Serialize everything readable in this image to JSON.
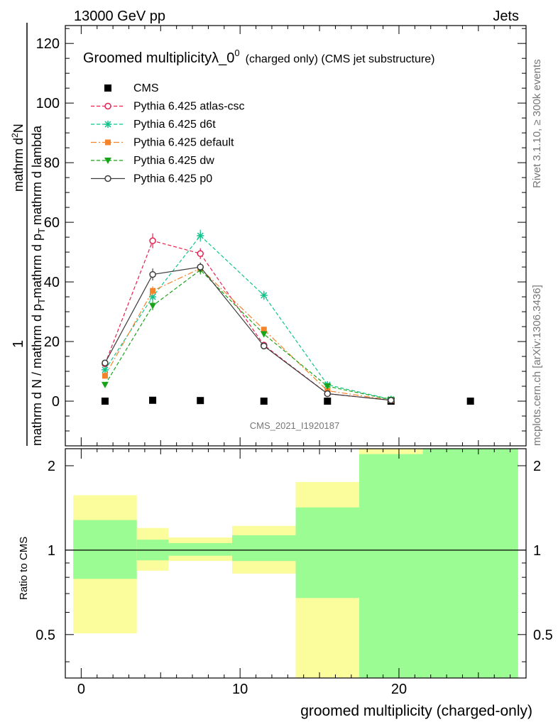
{
  "header": {
    "left": "13000 GeV pp",
    "right": "Jets"
  },
  "legend_title": {
    "main": "Groomed multiplicityλ_0",
    "sup": "0",
    "small": "(charged only) (CMS jet substructure)"
  },
  "side_labels": {
    "rivet": "Rivet 3.1.10, ≥ 300k events",
    "mcplots": "mcplots.cern.ch [arXiv:1306.3436]"
  },
  "watermark": "CMS_2021_I1920187",
  "colors": {
    "cms": "#000000",
    "atlas_csc": "#e8204f",
    "d6t": "#11c48b",
    "default": "#f5832a",
    "dw": "#19a319",
    "p0": "#3c3c3c",
    "band_inner": "#9cfc94",
    "band_outer": "#fbfc9c"
  },
  "chart_data": [
    {
      "type": "scatter",
      "ylabel_numerator": "1",
      "ylabel": "mathrm d N / mathrm d p_T mathrm d p_T mathrm d lambda",
      "ylabel_top": "mathrm d^2N",
      "ylabel_parts": {
        "num": "1",
        "den": "mathrm d N / mathrm d p",
        "den_sub": "T",
        "right": "mathrm d^2N",
        "right_den": "mathrm d p",
        "right_den_sub": "T",
        "right_tail": "mathrm d p",
        "right_tail2": "mathrm d lambda",
        "full_left": "mathrm d N / mathrm d p",
        "full_mid": "mathrm d p",
        "full_mid2": "mathrm d lambda",
        "frac_top": "mathrm d",
        "frac_top_sup": "2",
        "frac_top_tail": "N"
      },
      "xlim": [
        -1,
        28
      ],
      "ylim": [
        -15,
        126
      ],
      "yticks": [
        0,
        20,
        40,
        60,
        80,
        100,
        120
      ],
      "legend_position": "top-left",
      "series": [
        {
          "name": "CMS",
          "marker": "square",
          "color_key": "cms",
          "x": [
            1.5,
            4.5,
            7.5,
            11.5,
            15.5,
            19.5,
            24.5
          ],
          "y": [
            0,
            0.3,
            0.2,
            0,
            0,
            0,
            0
          ]
        },
        {
          "name": "Pythia 6.425 atlas-csc",
          "marker": "open-circle",
          "line": "dashed",
          "color_key": "atlas_csc",
          "x": [
            1.5,
            4.5,
            7.5,
            11.5,
            15.5,
            19.5
          ],
          "y": [
            12.5,
            53.8,
            49.5,
            18.8,
            2.5,
            0.3
          ],
          "err": [
            0.5,
            2.5,
            1.8,
            1.0,
            0.4,
            0.1
          ]
        },
        {
          "name": "Pythia 6.425 d6t",
          "marker": "star",
          "line": "dashed",
          "color_key": "d6t",
          "x": [
            1.5,
            4.5,
            7.5,
            11.5,
            15.5,
            19.5
          ],
          "y": [
            10.5,
            35.0,
            55.5,
            35.5,
            5.5,
            0.6
          ],
          "err": [
            0.5,
            1.5,
            2.0,
            1.5,
            0.5,
            0.1
          ]
        },
        {
          "name": "Pythia 6.425 default",
          "marker": "filled-square",
          "line": "dashdot",
          "color_key": "default",
          "x": [
            1.5,
            4.5,
            7.5,
            11.5,
            15.5,
            19.5
          ],
          "y": [
            8.5,
            37.0,
            44.5,
            24.0,
            3.5,
            0.3
          ],
          "err": [
            0.5,
            1.5,
            1.5,
            1.0,
            0.3,
            0.1
          ]
        },
        {
          "name": "Pythia 6.425 dw",
          "marker": "filled-triangle-down",
          "line": "dashed",
          "color_key": "dw",
          "x": [
            1.5,
            4.5,
            7.5,
            11.5,
            15.5,
            19.5
          ],
          "y": [
            5.5,
            32.0,
            44.0,
            22.5,
            5.0,
            0.5
          ],
          "err": [
            0.4,
            1.5,
            1.5,
            1.0,
            0.4,
            0.1
          ]
        },
        {
          "name": "Pythia 6.425 p0",
          "marker": "open-circle",
          "line": "solid",
          "color_key": "p0",
          "x": [
            1.5,
            4.5,
            7.5,
            11.5,
            15.5,
            19.5
          ],
          "y": [
            12.8,
            42.5,
            45.0,
            18.5,
            2.5,
            0.3
          ],
          "err": [
            0.5,
            2.0,
            1.5,
            0.8,
            0.3,
            0.1
          ]
        }
      ]
    },
    {
      "type": "area",
      "ylabel": "Ratio to CMS",
      "xlabel": "groomed multiplicity (charged-only)",
      "xlim": [
        -1,
        28
      ],
      "ylim": [
        0.35,
        2.3
      ],
      "log_scale_y": true,
      "yticks": [
        0.5,
        1,
        2
      ],
      "xticks": [
        0,
        10,
        20
      ],
      "reference_line": 1,
      "bands": [
        {
          "x0": -0.5,
          "x1": 3.5,
          "inner": [
            0.79,
            1.28
          ],
          "outer": [
            0.505,
            1.57
          ]
        },
        {
          "x0": 3.5,
          "x1": 5.5,
          "inner": [
            0.92,
            1.09
          ],
          "outer": [
            0.845,
            1.2
          ]
        },
        {
          "x0": 5.5,
          "x1": 9.5,
          "inner": [
            0.955,
            1.06
          ],
          "outer": [
            0.915,
            1.11
          ]
        },
        {
          "x0": 9.5,
          "x1": 13.5,
          "inner": [
            0.915,
            1.13
          ],
          "outer": [
            0.825,
            1.22
          ]
        },
        {
          "x0": 13.5,
          "x1": 17.5,
          "inner": [
            0.675,
            1.42
          ],
          "outer": [
            0.35,
            1.75
          ]
        },
        {
          "x0": 17.5,
          "x1": 21.5,
          "inner": [
            0.35,
            2.2
          ],
          "outer": [
            0.35,
            2.3
          ]
        },
        {
          "x0": 21.5,
          "x1": 27.5,
          "inner": [
            0.35,
            2.3
          ],
          "outer": [
            0.35,
            2.3
          ]
        }
      ]
    }
  ]
}
